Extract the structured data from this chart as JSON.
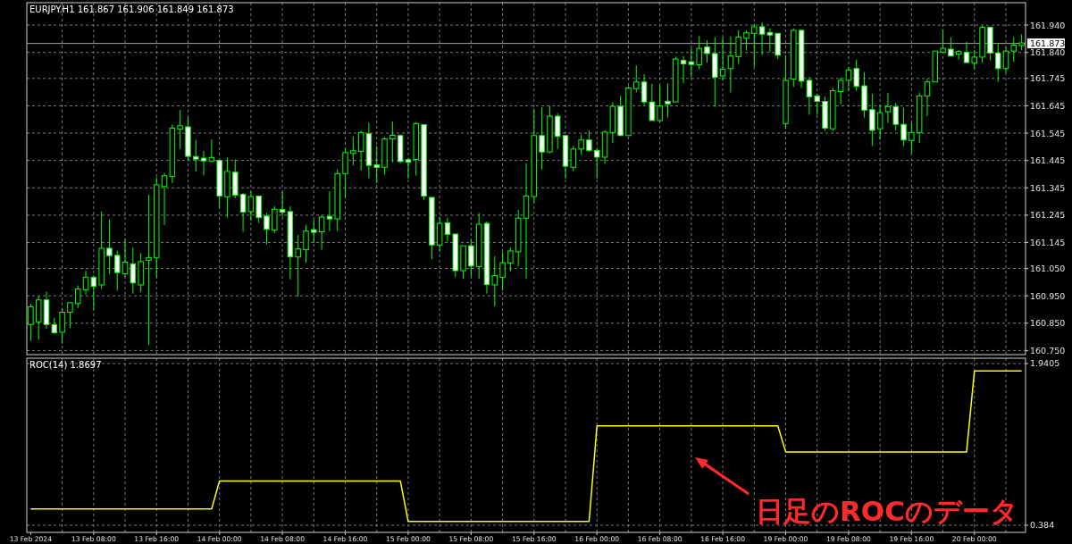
{
  "chart_data": [
    {
      "type": "candlestick",
      "title": "EURJPY.H1 161.867 161.906 161.849 161.873",
      "color": "#00ff00",
      "grid": true,
      "categories": [
        null,
        null,
        null,
        null,
        null,
        null,
        null,
        null,
        null,
        null,
        null,
        null,
        null,
        null,
        null,
        null,
        null,
        null,
        null,
        null,
        null,
        null,
        null,
        null,
        null,
        null,
        null,
        null,
        null,
        null,
        null,
        null,
        null,
        null,
        null,
        null,
        null,
        null,
        null,
        null,
        null,
        null,
        null,
        null,
        null,
        null,
        null,
        null,
        null,
        null,
        null,
        null,
        null,
        null,
        null,
        null,
        null,
        null,
        null,
        null,
        null,
        null,
        null,
        null,
        null,
        null,
        null,
        null,
        null,
        null,
        null,
        null,
        null,
        null,
        null,
        null,
        null,
        null,
        null,
        null,
        null,
        null,
        null,
        null,
        null,
        null,
        null,
        null,
        null,
        null,
        null,
        null,
        null,
        null,
        null,
        null,
        null,
        null,
        null,
        null,
        null,
        null,
        null,
        null,
        null,
        null,
        null,
        null,
        null,
        null,
        null,
        null,
        null,
        null,
        null,
        null,
        null,
        null,
        null,
        null,
        null,
        null,
        null,
        null,
        null,
        null,
        null
      ],
      "ylim": [
        160.735,
        162.022
      ],
      "yticks": [
        {
          "value": 160.75,
          "label": "160.750"
        },
        {
          "value": 160.85,
          "label": "160.850"
        },
        {
          "value": 160.95,
          "label": "160.950"
        },
        {
          "value": 161.05,
          "label": "161.050"
        },
        161.145,
        161.245,
        161.345,
        161.445,
        161.545,
        161.645,
        161.745,
        {
          "value": 161.84,
          "label": "161.840"
        },
        {
          "value": 161.94,
          "label": "161.940"
        }
      ],
      "ref_lines": [
        {
          "axis": "y",
          "value": 161.873,
          "label": "161.873",
          "color": "#a0a0a0"
        }
      ],
      "ohlc": [
        [
          160.845,
          160.92,
          160.785,
          160.91
        ],
        [
          160.855,
          160.95,
          160.79,
          160.935
        ],
        [
          160.935,
          160.965,
          160.83,
          160.845
        ],
        [
          160.845,
          160.87,
          160.81,
          160.815
        ],
        [
          160.817,
          160.905,
          160.775,
          160.89
        ],
        [
          160.89,
          160.928,
          160.833,
          160.925
        ],
        [
          160.922,
          160.988,
          160.905,
          160.975
        ],
        [
          160.972,
          161.042,
          160.953,
          161.018
        ],
        [
          161.018,
          161.024,
          160.9,
          160.985
        ],
        [
          160.99,
          161.258,
          160.975,
          161.124
        ],
        [
          161.124,
          161.23,
          161.03,
          161.097
        ],
        [
          161.098,
          161.116,
          160.97,
          161.035
        ],
        [
          161.031,
          161.158,
          161.018,
          161.073
        ],
        [
          161.067,
          161.127,
          160.958,
          160.997
        ],
        [
          160.99,
          161.106,
          160.964,
          161.075
        ],
        [
          161.08,
          161.32,
          160.77,
          161.09
        ],
        [
          161.09,
          161.383,
          161.018,
          161.356
        ],
        [
          161.35,
          161.4,
          161.209,
          161.389
        ],
        [
          161.387,
          161.576,
          161.362,
          161.563
        ],
        [
          161.56,
          161.63,
          161.487,
          161.572
        ],
        [
          161.568,
          161.604,
          161.443,
          161.46
        ],
        [
          161.458,
          161.52,
          161.405,
          161.451
        ],
        [
          161.451,
          161.48,
          161.39,
          161.446
        ],
        [
          161.443,
          161.522,
          161.438,
          161.456
        ],
        [
          161.445,
          161.449,
          161.269,
          161.315
        ],
        [
          161.312,
          161.456,
          161.236,
          161.405
        ],
        [
          161.402,
          161.449,
          161.307,
          161.318
        ],
        [
          161.321,
          161.326,
          161.184,
          161.256
        ],
        [
          161.258,
          161.332,
          161.225,
          161.313
        ],
        [
          161.315,
          161.318,
          161.217,
          161.236
        ],
        [
          161.242,
          161.253,
          161.138,
          161.193
        ],
        [
          161.19,
          161.278,
          161.18,
          161.267
        ],
        [
          161.263,
          161.332,
          161.24,
          161.258
        ],
        [
          161.258,
          161.278,
          161.01,
          161.093
        ],
        [
          161.092,
          161.173,
          160.948,
          161.122
        ],
        [
          161.119,
          161.209,
          161.071,
          161.187
        ],
        [
          161.189,
          161.228,
          161.144,
          161.185
        ],
        [
          161.184,
          161.245,
          161.119,
          161.238
        ],
        [
          161.238,
          161.332,
          161.187,
          161.234
        ],
        [
          161.231,
          161.413,
          161.187,
          161.397
        ],
        [
          161.397,
          161.492,
          161.307,
          161.474
        ],
        [
          161.471,
          161.533,
          161.427,
          161.48
        ],
        [
          161.478,
          161.554,
          161.408,
          161.547
        ],
        [
          161.543,
          161.583,
          161.38,
          161.427
        ],
        [
          161.427,
          161.498,
          161.362,
          161.422
        ],
        [
          161.42,
          161.53,
          161.394,
          161.524
        ],
        [
          161.524,
          161.587,
          161.438,
          161.537
        ],
        [
          161.536,
          161.541,
          161.435,
          161.441
        ],
        [
          161.446,
          161.454,
          161.378,
          161.44
        ],
        [
          161.449,
          161.585,
          161.389,
          161.58
        ],
        [
          161.576,
          161.579,
          161.302,
          161.315
        ],
        [
          161.31,
          161.312,
          161.084,
          161.136
        ],
        [
          161.136,
          161.238,
          161.114,
          161.215
        ],
        [
          161.217,
          161.236,
          161.149,
          161.175
        ],
        [
          161.176,
          161.179,
          161.018,
          161.042
        ],
        [
          161.042,
          161.136,
          161.013,
          161.133
        ],
        [
          161.133,
          161.155,
          161.021,
          161.059
        ],
        [
          161.057,
          161.253,
          161.013,
          161.212
        ],
        [
          161.215,
          161.222,
          160.958,
          160.991
        ],
        [
          160.99,
          161.095,
          160.912,
          161.024
        ],
        [
          161.018,
          161.108,
          160.969,
          161.071
        ],
        [
          161.07,
          161.127,
          161.04,
          161.114
        ],
        [
          161.111,
          161.264,
          161.057,
          161.234
        ],
        [
          161.234,
          161.435,
          161.013,
          161.315
        ],
        [
          161.313,
          161.634,
          161.29,
          161.536
        ],
        [
          161.536,
          161.64,
          161.411,
          161.476
        ],
        [
          161.476,
          161.645,
          161.471,
          161.607
        ],
        [
          161.607,
          161.618,
          161.487,
          161.533
        ],
        [
          161.536,
          161.54,
          161.378,
          161.424
        ],
        [
          161.42,
          161.498,
          161.406,
          161.487
        ],
        [
          161.487,
          161.54,
          161.466,
          161.52
        ],
        [
          161.52,
          161.555,
          161.476,
          161.482
        ],
        [
          161.482,
          161.487,
          161.378,
          161.457
        ],
        [
          161.457,
          161.555,
          161.433,
          161.549
        ],
        [
          161.547,
          161.658,
          161.509,
          161.643
        ],
        [
          161.643,
          161.681,
          161.536,
          161.536
        ],
        [
          161.536,
          161.716,
          161.536,
          161.71
        ],
        [
          161.708,
          161.792,
          161.694,
          161.732
        ],
        [
          161.732,
          161.76,
          161.648,
          161.659
        ],
        [
          161.659,
          161.725,
          161.591,
          161.591
        ],
        [
          161.591,
          161.721,
          161.585,
          161.645
        ],
        [
          161.659,
          161.727,
          161.602,
          161.655
        ],
        [
          161.659,
          161.825,
          161.656,
          161.816
        ],
        [
          161.811,
          161.827,
          161.727,
          161.798
        ],
        [
          161.803,
          161.855,
          161.749,
          161.799
        ],
        [
          161.795,
          161.899,
          161.779,
          161.855
        ],
        [
          161.86,
          161.885,
          161.803,
          161.836
        ],
        [
          161.836,
          161.896,
          161.642,
          161.749
        ],
        [
          161.754,
          161.896,
          161.738,
          161.779
        ],
        [
          161.781,
          161.899,
          161.694,
          161.827
        ],
        [
          161.825,
          161.921,
          161.798,
          161.896
        ],
        [
          161.892,
          161.921,
          161.847,
          161.912
        ],
        [
          161.91,
          161.945,
          161.787,
          161.934
        ],
        [
          161.934,
          161.95,
          161.83,
          161.907
        ],
        [
          161.91,
          161.928,
          161.841,
          161.907
        ],
        [
          161.91,
          161.912,
          161.816,
          161.83
        ],
        [
          161.58,
          161.83,
          161.56,
          161.738
        ],
        [
          161.743,
          161.928,
          161.714,
          161.921
        ],
        [
          161.921,
          161.923,
          161.71,
          161.735
        ],
        [
          161.738,
          161.751,
          161.612,
          161.678
        ],
        [
          161.681,
          161.689,
          161.612,
          161.661
        ],
        [
          161.661,
          161.678,
          161.553,
          161.563
        ],
        [
          161.561,
          161.71,
          161.553,
          161.7
        ],
        [
          161.697,
          161.749,
          161.65,
          161.738
        ],
        [
          161.738,
          161.787,
          161.7,
          161.776
        ],
        [
          161.781,
          161.814,
          161.7,
          161.716
        ],
        [
          161.718,
          161.768,
          161.602,
          161.629
        ],
        [
          161.631,
          161.689,
          161.498,
          161.555
        ],
        [
          161.561,
          161.648,
          161.522,
          161.62
        ],
        [
          161.623,
          161.692,
          161.583,
          161.642
        ],
        [
          161.642,
          161.656,
          161.555,
          161.577
        ],
        [
          161.577,
          161.638,
          161.498,
          161.52
        ],
        [
          161.518,
          161.585,
          161.471,
          161.547
        ],
        [
          161.547,
          161.694,
          161.509,
          161.681
        ],
        [
          161.681,
          161.743,
          161.607,
          161.732
        ],
        [
          161.732,
          161.845,
          161.729,
          161.845
        ],
        [
          161.841,
          161.925,
          161.838,
          161.855
        ],
        [
          161.852,
          161.896,
          161.823,
          161.827
        ],
        [
          161.836,
          161.849,
          161.814,
          161.841
        ],
        [
          161.841,
          161.879,
          161.801,
          161.803
        ],
        [
          161.801,
          161.849,
          161.779,
          161.823
        ],
        [
          161.823,
          161.939,
          161.803,
          161.932
        ],
        [
          161.932,
          161.936,
          161.812,
          161.838
        ],
        [
          161.838,
          161.871,
          161.732,
          161.781
        ],
        [
          161.781,
          161.86,
          161.765,
          161.845
        ],
        [
          161.845,
          161.896,
          161.805,
          161.867
        ],
        [
          161.867,
          161.906,
          161.849,
          161.873
        ]
      ]
    },
    {
      "type": "line",
      "title": "ROC(14) 1.8697",
      "grid": true,
      "categories": [
        "13 Feb 2024",
        null,
        null,
        null,
        null,
        null,
        null,
        null,
        "13 Feb 08:00",
        null,
        null,
        null,
        null,
        null,
        null,
        null,
        "13 Feb 16:00",
        null,
        null,
        null,
        null,
        null,
        null,
        null,
        "14 Feb 00:00",
        null,
        null,
        null,
        null,
        null,
        null,
        null,
        "14 Feb 08:00",
        null,
        null,
        null,
        null,
        null,
        null,
        null,
        "14 Feb 16:00",
        null,
        null,
        null,
        null,
        null,
        null,
        null,
        "15 Feb 00:00",
        null,
        null,
        null,
        null,
        null,
        null,
        null,
        "15 Feb 08:00",
        null,
        null,
        null,
        null,
        null,
        null,
        null,
        "15 Feb 16:00",
        null,
        null,
        null,
        null,
        null,
        null,
        null,
        "16 Feb 00:00",
        null,
        null,
        null,
        null,
        null,
        null,
        null,
        "16 Feb 08:00",
        null,
        null,
        null,
        null,
        null,
        null,
        null,
        "16 Feb 16:00",
        null,
        null,
        null,
        null,
        null,
        null,
        null,
        "19 Feb 00:00",
        null,
        null,
        null,
        null,
        null,
        null,
        null,
        "19 Feb 08:00",
        null,
        null,
        null,
        null,
        null,
        null,
        null,
        "19 Feb 16:00",
        null,
        null,
        null,
        null,
        null,
        null,
        null,
        "20 Feb 00:00",
        null,
        null,
        null,
        null,
        null,
        null
      ],
      "ylim": [
        0.315,
        1.992
      ],
      "yticks": [
        0.384,
        1.9405
      ],
      "series": [
        {
          "color": "#ffff00",
          "values": [
            0.54,
            0.54,
            0.54,
            0.54,
            0.54,
            0.54,
            0.54,
            0.54,
            0.54,
            0.54,
            0.54,
            0.54,
            0.54,
            0.54,
            0.54,
            0.54,
            0.54,
            0.54,
            0.54,
            0.54,
            0.54,
            0.54,
            0.54,
            0.54,
            0.81,
            0.81,
            0.81,
            0.81,
            0.81,
            0.81,
            0.81,
            0.81,
            0.81,
            0.81,
            0.81,
            0.81,
            0.81,
            0.81,
            0.81,
            0.81,
            0.81,
            0.81,
            0.81,
            0.81,
            0.81,
            0.81,
            0.81,
            0.81,
            0.42,
            0.42,
            0.42,
            0.42,
            0.42,
            0.42,
            0.42,
            0.42,
            0.42,
            0.42,
            0.42,
            0.42,
            0.42,
            0.42,
            0.42,
            0.42,
            0.42,
            0.42,
            0.42,
            0.42,
            0.42,
            0.42,
            0.42,
            0.42,
            1.34,
            1.34,
            1.34,
            1.34,
            1.34,
            1.34,
            1.34,
            1.34,
            1.34,
            1.34,
            1.34,
            1.34,
            1.34,
            1.34,
            1.34,
            1.34,
            1.34,
            1.34,
            1.34,
            1.34,
            1.34,
            1.34,
            1.34,
            1.34,
            1.09,
            1.09,
            1.09,
            1.09,
            1.09,
            1.09,
            1.09,
            1.09,
            1.09,
            1.09,
            1.09,
            1.09,
            1.09,
            1.09,
            1.09,
            1.09,
            1.09,
            1.09,
            1.09,
            1.09,
            1.09,
            1.09,
            1.09,
            1.09,
            1.8697,
            1.8697,
            1.8697,
            1.8697,
            1.8697,
            1.8697,
            1.8697
          ]
        }
      ],
      "annotations": [
        "日足のROCのデータ"
      ]
    }
  ]
}
